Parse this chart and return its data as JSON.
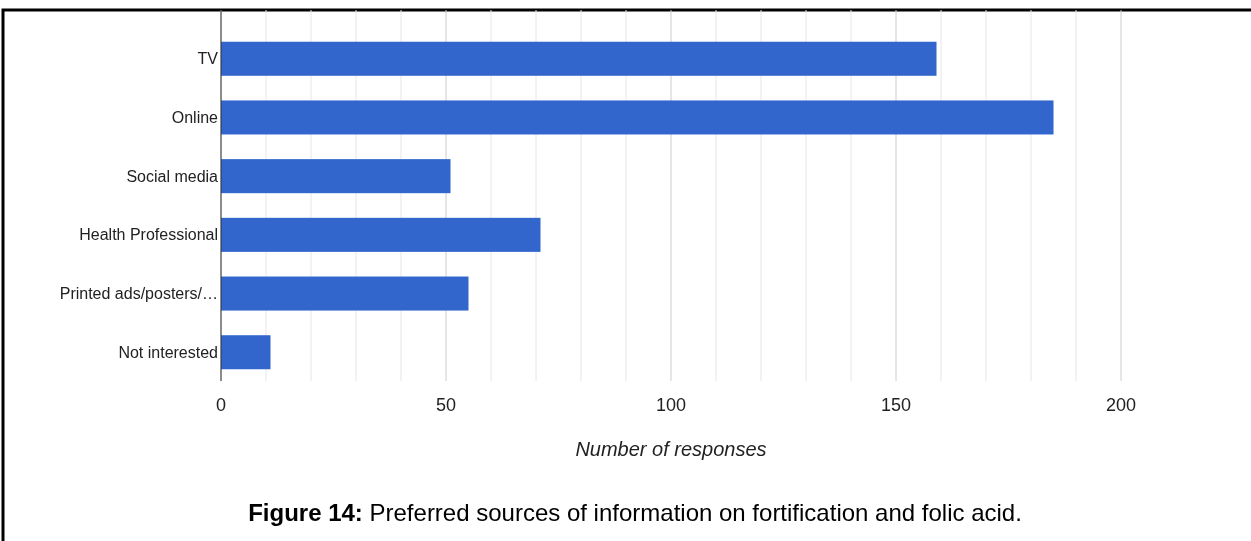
{
  "chart_data": {
    "type": "bar",
    "orientation": "horizontal",
    "title": "Figure 14: Preferred sources of information on fortification and folic acid.",
    "xlabel": "Number of responses",
    "categories": [
      "TV",
      "Online",
      "Social media",
      "Health Professional",
      "Printed ads/posters/…",
      "Not interested"
    ],
    "values": [
      159,
      185,
      51,
      71,
      55,
      11
    ],
    "color": "#3366cc",
    "xlim": [
      0,
      200
    ],
    "xticks": [
      0,
      {
        "value": 10,
        "label": null
      },
      {
        "value": 20,
        "label": null
      },
      {
        "value": 30,
        "label": null
      },
      {
        "value": 40,
        "label": null
      },
      50,
      {
        "value": 60,
        "label": null
      },
      {
        "value": 70,
        "label": null
      },
      {
        "value": 80,
        "label": null
      },
      {
        "value": 90,
        "label": null
      },
      100,
      {
        "value": 110,
        "label": null
      },
      {
        "value": 120,
        "label": null
      },
      {
        "value": 130,
        "label": null
      },
      {
        "value": 140,
        "label": null
      },
      150,
      {
        "value": 160,
        "label": null
      },
      {
        "value": 170,
        "label": null
      },
      {
        "value": 180,
        "label": null
      },
      {
        "value": 190,
        "label": null
      },
      200
    ],
    "grid": "x"
  }
}
